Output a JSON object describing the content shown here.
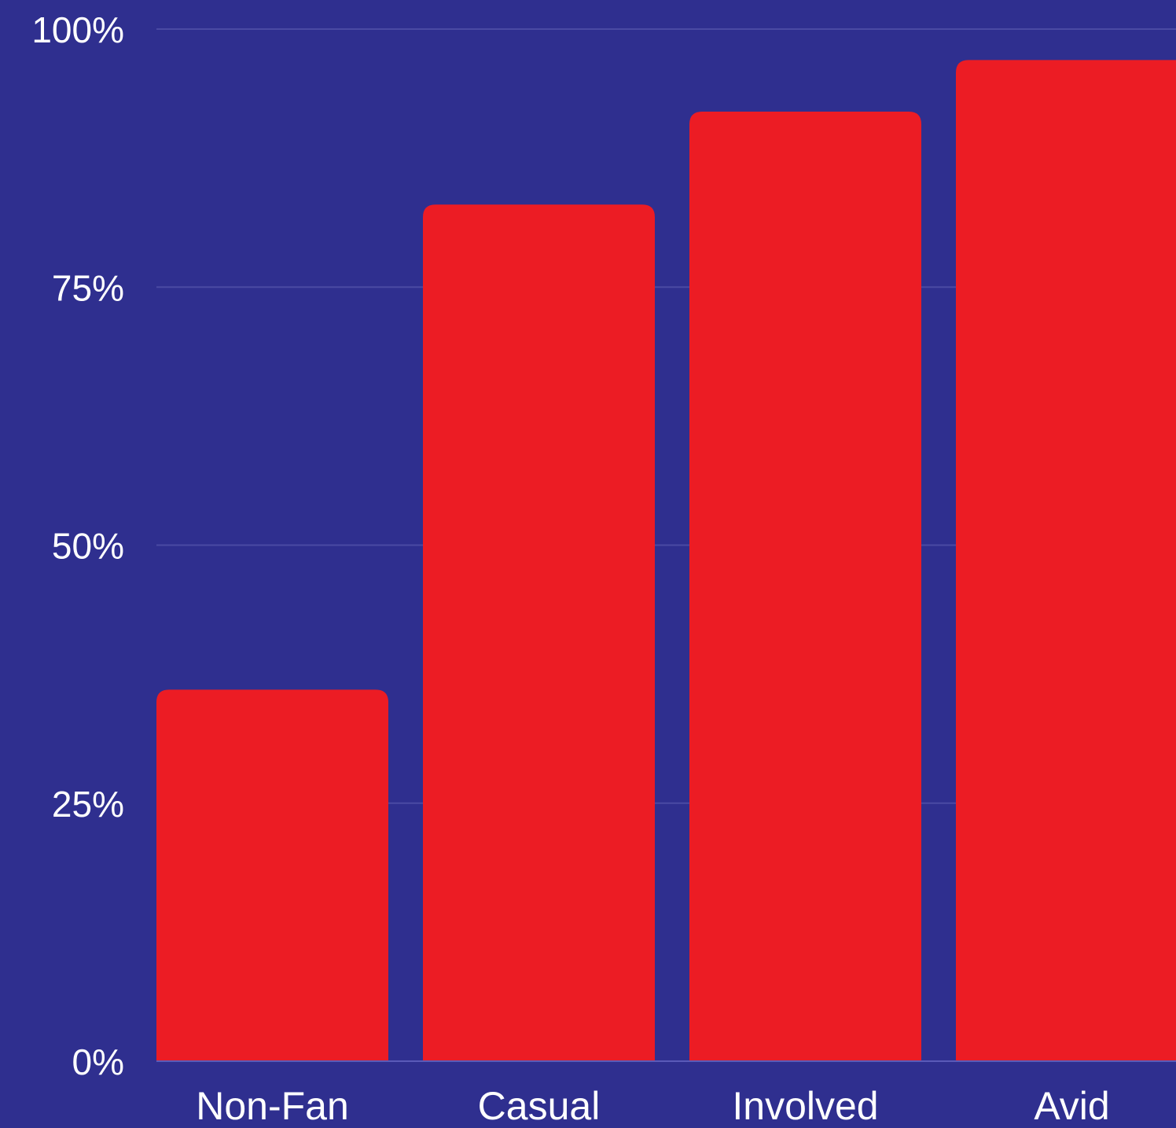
{
  "colors": {
    "background": "#2f2f8f",
    "bar": "#ec1c24",
    "gridline": "#4a4aa3",
    "axis_line": "#5a5ab8",
    "text": "#ffffff"
  },
  "chart_data": {
    "type": "bar",
    "categories": [
      "Non-Fan",
      "Casual",
      "Involved",
      "Avid"
    ],
    "values": [
      36,
      83,
      92,
      97
    ],
    "ylim": [
      0,
      100
    ],
    "yticks": [
      0,
      25,
      50,
      75,
      100
    ],
    "ytick_labels": [
      "0%",
      "25%",
      "50%",
      "75%",
      "100%"
    ],
    "grid": true,
    "legend": "none"
  }
}
